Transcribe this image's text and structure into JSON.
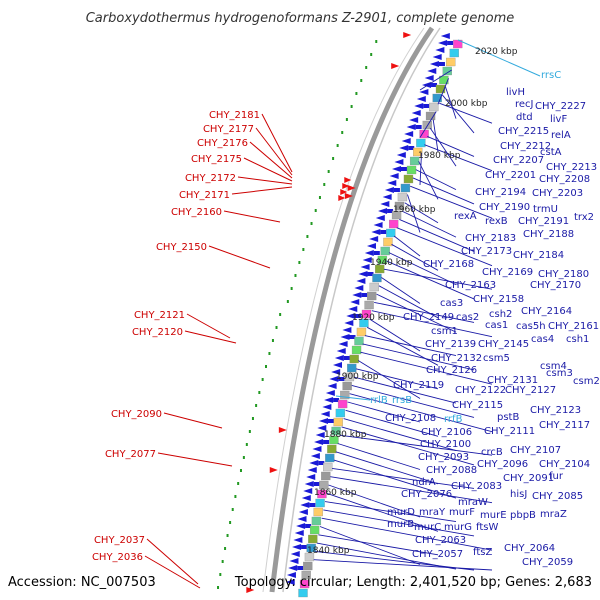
{
  "title": "Carboxydothermus hydrogenoformans Z-2901, complete genome",
  "accession": "Accession: NC_007503",
  "topology": "Topology: circular; Length: 2,401,520 bp; Genes: 2,683",
  "colors": {
    "forward_label": "#cc0000",
    "reverse_label": "#1a1aa6",
    "rna_label": "#33aadd",
    "forward_arrow": "#ee1111",
    "reverse_arrow": "#1a1ad6",
    "backbone": "#888888",
    "dots": "#229922"
  },
  "kbp_ticks": [
    "2020 kbp",
    "2000 kbp",
    "1980 kbp",
    "1960 kbp",
    "1940 kbp",
    "1920 kbp",
    "1900 kbp",
    "1880 kbp",
    "1860 kbp",
    "1840 kbp"
  ],
  "left_labels": [
    "CHY_2181",
    "CHY_2177",
    "CHY_2176",
    "CHY_2175",
    "CHY_2172",
    "CHY_2171",
    "CHY_2160",
    "CHY_2150",
    "CHY_2121",
    "CHY_2120",
    "CHY_2090",
    "CHY_2077",
    "CHY_2037",
    "CHY_2036"
  ],
  "right_labels": [
    "rrsC",
    "livH",
    "recJ",
    "CHY_2227",
    "dtd",
    "livF",
    "CHY_2215",
    "relA",
    "CHY_2212",
    "cstA",
    "CHY_2207",
    "CHY_2213",
    "CHY_2201",
    "CHY_2208",
    "CHY_2194",
    "CHY_2203",
    "CHY_2190",
    "trmU",
    "rexA",
    "rexB",
    "CHY_2191",
    "trx2",
    "CHY_2188",
    "CHY_2183",
    "CHY_2173",
    "CHY_2184",
    "CHY_2168",
    "CHY_2169",
    "CHY_2180",
    "CHY_2163",
    "CHY_2170",
    "CHY_2158",
    "cas3",
    "csh2",
    "CHY_2164",
    "CHY_2149",
    "cas2",
    "cas1",
    "cas5h",
    "CHY_2161",
    "csm1",
    "cas4",
    "csh1",
    "CHY_2139",
    "CHY_2145",
    "CHY_2132",
    "csm5",
    "csm4",
    "CHY_2126",
    "csm3",
    "CHY_2131",
    "csm2",
    "CHY_2119",
    "CHY_2122",
    "CHY_2127",
    "rrlB",
    "rrsB",
    "CHY_2115",
    "CHY_2123",
    "pstB",
    "CHY_2108",
    "rrfB",
    "CHY_2117",
    "CHY_2106",
    "CHY_2111",
    "CHY_2100",
    "crcB",
    "CHY_2107",
    "CHY_2093",
    "CHY_2096",
    "CHY_2104",
    "CHY_2088",
    "CHY_2091",
    "fur",
    "ndrA",
    "CHY_2083",
    "CHY_2076",
    "hisJ",
    "CHY_2085",
    "mraW",
    "murD",
    "mraY",
    "murF",
    "murE",
    "pbpB",
    "mraZ",
    "murB",
    "murC",
    "murG",
    "ftsW",
    "CHY_2063",
    "CHY_2064",
    "CHY_2057",
    "ftsZ",
    "CHY_2059"
  ]
}
